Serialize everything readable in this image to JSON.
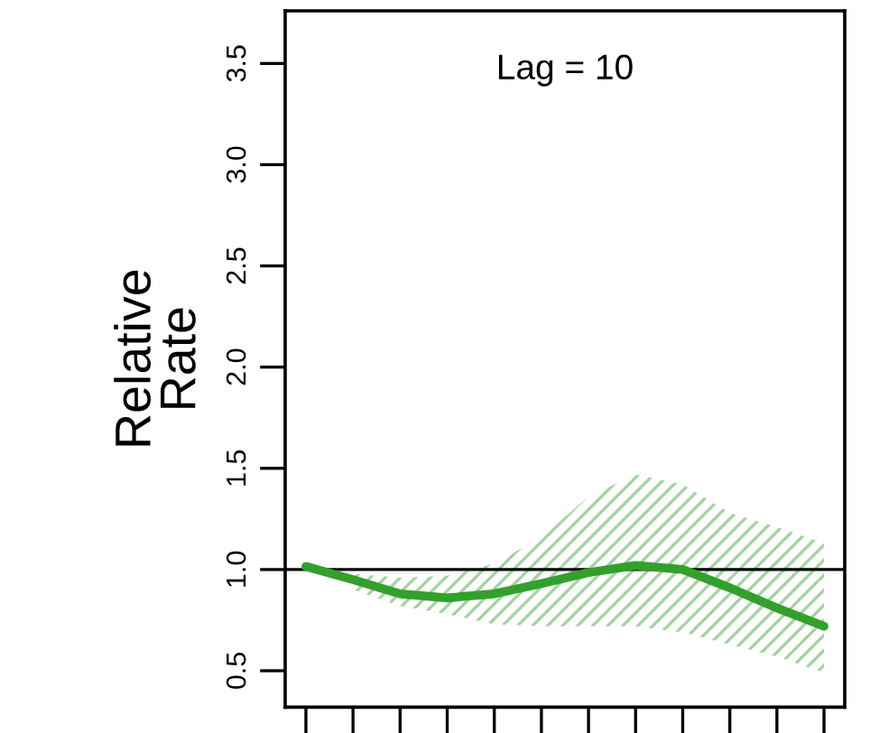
{
  "chart_data": {
    "type": "line",
    "ylabel": "Relative\nRate",
    "annotations": [
      "Lag = 10"
    ],
    "categories": [
      null,
      null,
      null,
      null,
      null,
      null,
      null,
      null,
      null,
      null,
      null,
      null
    ],
    "ylim": [
      0.32,
      3.76
    ],
    "yticks": [
      {
        "value": 0.5,
        "label": "0.5"
      },
      {
        "value": 1.0,
        "label": "1.0"
      },
      {
        "value": 1.5,
        "label": "1.5"
      },
      {
        "value": 2.0,
        "label": "2.0"
      },
      {
        "value": 2.5,
        "label": "2.5"
      },
      {
        "value": 3.0,
        "label": "3.0"
      },
      {
        "value": 3.5,
        "label": "3.5"
      }
    ],
    "tick_labels": "y",
    "grid": false,
    "legend": false,
    "line_style": "solid",
    "marker": "none",
    "ref_lines": [
      {
        "axis": "y",
        "value": 1.0,
        "color": "#000000"
      }
    ],
    "series": [
      {
        "color": "#33a02c",
        "values": [
          1.015,
          0.95,
          0.88,
          0.86,
          0.88,
          0.93,
          0.985,
          1.02,
          1.0,
          0.91,
          0.81,
          0.72
        ],
        "lower": [
          null,
          0.9,
          0.82,
          0.78,
          0.73,
          0.72,
          0.72,
          0.72,
          0.69,
          0.63,
          0.57,
          0.49
        ],
        "upper": [
          null,
          0.98,
          0.96,
          0.97,
          1.03,
          1.16,
          1.36,
          1.47,
          1.42,
          1.28,
          1.21,
          1.13
        ]
      }
    ]
  }
}
